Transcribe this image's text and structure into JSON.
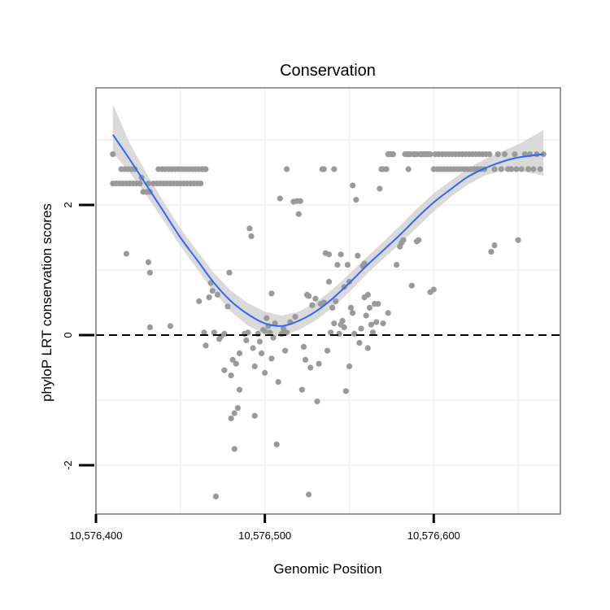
{
  "chart_data": {
    "type": "scatter",
    "title": "Conservation",
    "xlabel": "Genomic Position",
    "ylabel": "phyloP LRT conservation scores",
    "xlim": [
      10576400,
      10576675
    ],
    "ylim": [
      -2.75,
      3.8
    ],
    "x_ticks": [
      {
        "value": 10576400,
        "label": "10,576,400"
      },
      {
        "value": 10576500,
        "label": "10,576,500"
      },
      {
        "value": 10576600,
        "label": "10,576,600"
      }
    ],
    "y_ticks": [
      {
        "value": -2,
        "label": "-2"
      },
      {
        "value": 0,
        "label": "0"
      },
      {
        "value": 2,
        "label": "2"
      }
    ],
    "grid": true,
    "reference_line": {
      "y": 0,
      "style": "dashed"
    },
    "colors": {
      "points": "#9a9a9a",
      "smooth_line": "#3366ff",
      "confidence_band": "#d3d3d3",
      "grid": "#f2f2f2",
      "border": "#808080"
    },
    "points": [
      [
        10576410,
        2.78
      ],
      [
        10576410,
        2.33
      ],
      [
        10576412,
        2.33
      ],
      [
        10576414,
        2.33
      ],
      [
        10576415,
        2.55
      ],
      [
        10576416,
        2.33
      ],
      [
        10576417,
        2.55
      ],
      [
        10576418,
        2.33
      ],
      [
        10576419,
        2.55
      ],
      [
        10576420,
        2.33
      ],
      [
        10576421,
        2.55
      ],
      [
        10576422,
        2.33
      ],
      [
        10576423,
        2.55
      ],
      [
        10576424,
        2.33
      ],
      [
        10576426,
        2.33
      ],
      [
        10576427,
        2.42
      ],
      [
        10576428,
        2.2
      ],
      [
        10576430,
        2.2
      ],
      [
        10576431,
        2.33
      ],
      [
        10576432,
        2.2
      ],
      [
        10576434,
        2.33
      ],
      [
        10576436,
        2.33
      ],
      [
        10576437,
        2.55
      ],
      [
        10576438,
        2.33
      ],
      [
        10576439,
        2.55
      ],
      [
        10576440,
        2.33
      ],
      [
        10576441,
        2.55
      ],
      [
        10576442,
        2.33
      ],
      [
        10576443,
        2.55
      ],
      [
        10576444,
        2.33
      ],
      [
        10576445,
        2.55
      ],
      [
        10576446,
        2.33
      ],
      [
        10576447,
        2.55
      ],
      [
        10576448,
        2.33
      ],
      [
        10576449,
        2.55
      ],
      [
        10576450,
        2.33
      ],
      [
        10576451,
        2.55
      ],
      [
        10576452,
        2.33
      ],
      [
        10576453,
        2.55
      ],
      [
        10576454,
        2.33
      ],
      [
        10576455,
        2.55
      ],
      [
        10576456,
        2.33
      ],
      [
        10576457,
        2.55
      ],
      [
        10576458,
        2.33
      ],
      [
        10576459,
        2.55
      ],
      [
        10576460,
        2.33
      ],
      [
        10576461,
        2.55
      ],
      [
        10576462,
        2.33
      ],
      [
        10576463,
        2.55
      ],
      [
        10576464,
        2.55
      ],
      [
        10576465,
        2.55
      ],
      [
        10576418,
        1.25
      ],
      [
        10576431,
        1.12
      ],
      [
        10576432,
        0.96
      ],
      [
        10576432,
        0.12
      ],
      [
        10576444,
        0.14
      ],
      [
        10576461,
        0.52
      ],
      [
        10576464,
        0.04
      ],
      [
        10576465,
        -0.16
      ],
      [
        10576467,
        0.58
      ],
      [
        10576468,
        0.8
      ],
      [
        10576469,
        0.68
      ],
      [
        10576470,
        0.04
      ],
      [
        10576471,
        -2.48
      ],
      [
        10576472,
        0.62
      ],
      [
        10576473,
        -0.06
      ],
      [
        10576474,
        -0.02
      ],
      [
        10576476,
        0.02
      ],
      [
        10576476,
        -0.54
      ],
      [
        10576478,
        0.44
      ],
      [
        10576479,
        0.96
      ],
      [
        10576480,
        -0.62
      ],
      [
        10576480,
        -1.28
      ],
      [
        10576481,
        -0.38
      ],
      [
        10576482,
        -1.75
      ],
      [
        10576482,
        -1.2
      ],
      [
        10576483,
        -0.44
      ],
      [
        10576484,
        -1.12
      ],
      [
        10576485,
        -0.28
      ],
      [
        10576485,
        -0.84
      ],
      [
        10576488,
        0.02
      ],
      [
        10576489,
        -0.08
      ],
      [
        10576490,
        0.04
      ],
      [
        10576491,
        1.64
      ],
      [
        10576492,
        1.52
      ],
      [
        10576493,
        -0.2
      ],
      [
        10576494,
        -0.48
      ],
      [
        10576494,
        -1.24
      ],
      [
        10576496,
        0.02
      ],
      [
        10576497,
        -0.1
      ],
      [
        10576498,
        -0.28
      ],
      [
        10576499,
        0.08
      ],
      [
        10576500,
        0.06
      ],
      [
        10576500,
        -0.58
      ],
      [
        10576501,
        0.26
      ],
      [
        10576502,
        0.14
      ],
      [
        10576503,
        0.04
      ],
      [
        10576504,
        0.64
      ],
      [
        10576504,
        -0.36
      ],
      [
        10576505,
        -0.04
      ],
      [
        10576506,
        0.18
      ],
      [
        10576507,
        -1.68
      ],
      [
        10576508,
        -0.72
      ],
      [
        10576509,
        2.1
      ],
      [
        10576510,
        0.02
      ],
      [
        10576511,
        0.1
      ],
      [
        10576512,
        -0.24
      ],
      [
        10576513,
        2.55
      ],
      [
        10576513,
        0.04
      ],
      [
        10576515,
        0.2
      ],
      [
        10576517,
        2.05
      ],
      [
        10576518,
        0.28
      ],
      [
        10576519,
        2.06
      ],
      [
        10576520,
        1.86
      ],
      [
        10576521,
        2.06
      ],
      [
        10576522,
        -0.84
      ],
      [
        10576523,
        -0.18
      ],
      [
        10576524,
        -0.38
      ],
      [
        10576525,
        0.62
      ],
      [
        10576526,
        -2.45
      ],
      [
        10576526,
        0.6
      ],
      [
        10576527,
        -0.5
      ],
      [
        10576528,
        0.46
      ],
      [
        10576530,
        0.56
      ],
      [
        10576531,
        -1.02
      ],
      [
        10576532,
        -0.44
      ],
      [
        10576533,
        0.48
      ],
      [
        10576534,
        2.55
      ],
      [
        10576535,
        2.55
      ],
      [
        10576535,
        0.5
      ],
      [
        10576536,
        1.26
      ],
      [
        10576537,
        -0.24
      ],
      [
        10576538,
        1.24
      ],
      [
        10576538,
        0.82
      ],
      [
        10576539,
        0.04
      ],
      [
        10576540,
        0.42
      ],
      [
        10576541,
        0.18
      ],
      [
        10576541,
        2.55
      ],
      [
        10576542,
        0.52
      ],
      [
        10576543,
        1.08
      ],
      [
        10576544,
        0.02
      ],
      [
        10576545,
        1.24
      ],
      [
        10576545,
        0.16
      ],
      [
        10576546,
        0.22
      ],
      [
        10576547,
        0.12
      ],
      [
        10576547,
        0.74
      ],
      [
        10576548,
        -0.86
      ],
      [
        10576549,
        1.08
      ],
      [
        10576550,
        0.82
      ],
      [
        10576550,
        -0.48
      ],
      [
        10576551,
        0.42
      ],
      [
        10576552,
        2.3
      ],
      [
        10576552,
        0.34
      ],
      [
        10576553,
        0.02
      ],
      [
        10576554,
        2.08
      ],
      [
        10576555,
        1.22
      ],
      [
        10576556,
        -0.12
      ],
      [
        10576557,
        0.1
      ],
      [
        10576558,
        1.06
      ],
      [
        10576559,
        1.1
      ],
      [
        10576559,
        0.58
      ],
      [
        10576560,
        0.3
      ],
      [
        10576561,
        -0.2
      ],
      [
        10576561,
        0.62
      ],
      [
        10576562,
        0.42
      ],
      [
        10576563,
        0.16
      ],
      [
        10576564,
        0.04
      ],
      [
        10576565,
        0.48
      ],
      [
        10576566,
        0.2
      ],
      [
        10576567,
        0.48
      ],
      [
        10576568,
        2.25
      ],
      [
        10576569,
        2.55
      ],
      [
        10576570,
        2.55
      ],
      [
        10576570,
        0.18
      ],
      [
        10576572,
        2.55
      ],
      [
        10576573,
        2.78
      ],
      [
        10576573,
        0.34
      ],
      [
        10576574,
        2.78
      ],
      [
        10576575,
        2.78
      ],
      [
        10576576,
        2.78
      ],
      [
        10576578,
        1.08
      ],
      [
        10576580,
        1.36
      ],
      [
        10576581,
        1.42
      ],
      [
        10576582,
        1.46
      ],
      [
        10576583,
        2.78
      ],
      [
        10576584,
        2.78
      ],
      [
        10576585,
        2.55
      ],
      [
        10576585,
        2.78
      ],
      [
        10576586,
        2.78
      ],
      [
        10576587,
        0.76
      ],
      [
        10576588,
        2.78
      ],
      [
        10576589,
        2.78
      ],
      [
        10576590,
        2.78
      ],
      [
        10576590,
        1.44
      ],
      [
        10576591,
        1.46
      ],
      [
        10576592,
        2.78
      ],
      [
        10576593,
        2.78
      ],
      [
        10576594,
        2.78
      ],
      [
        10576595,
        2.78
      ],
      [
        10576596,
        2.78
      ],
      [
        10576597,
        2.78
      ],
      [
        10576598,
        0.66
      ],
      [
        10576598,
        2.78
      ],
      [
        10576600,
        2.55
      ],
      [
        10576600,
        0.7
      ],
      [
        10576601,
        2.78
      ],
      [
        10576602,
        2.55
      ],
      [
        10576603,
        2.78
      ],
      [
        10576604,
        2.55
      ],
      [
        10576605,
        2.78
      ],
      [
        10576606,
        2.55
      ],
      [
        10576607,
        2.78
      ],
      [
        10576608,
        2.55
      ],
      [
        10576609,
        2.78
      ],
      [
        10576610,
        2.55
      ],
      [
        10576611,
        2.78
      ],
      [
        10576612,
        2.55
      ],
      [
        10576613,
        2.78
      ],
      [
        10576614,
        2.55
      ],
      [
        10576615,
        2.78
      ],
      [
        10576616,
        2.55
      ],
      [
        10576617,
        2.78
      ],
      [
        10576618,
        2.55
      ],
      [
        10576619,
        2.78
      ],
      [
        10576620,
        2.55
      ],
      [
        10576621,
        2.78
      ],
      [
        10576622,
        2.55
      ],
      [
        10576623,
        2.78
      ],
      [
        10576624,
        2.55
      ],
      [
        10576625,
        2.78
      ],
      [
        10576626,
        2.55
      ],
      [
        10576627,
        2.78
      ],
      [
        10576628,
        2.55
      ],
      [
        10576629,
        2.78
      ],
      [
        10576630,
        2.55
      ],
      [
        10576631,
        2.78
      ],
      [
        10576633,
        2.78
      ],
      [
        10576634,
        1.28
      ],
      [
        10576636,
        1.38
      ],
      [
        10576636,
        2.55
      ],
      [
        10576638,
        2.78
      ],
      [
        10576640,
        2.55
      ],
      [
        10576642,
        2.78
      ],
      [
        10576644,
        2.55
      ],
      [
        10576646,
        2.55
      ],
      [
        10576648,
        2.78
      ],
      [
        10576649,
        2.55
      ],
      [
        10576650,
        1.46
      ],
      [
        10576652,
        2.55
      ],
      [
        10576654,
        2.78
      ],
      [
        10576656,
        2.55
      ],
      [
        10576657,
        2.78
      ],
      [
        10576659,
        2.55
      ],
      [
        10576661,
        2.78
      ],
      [
        10576663,
        2.55
      ],
      [
        10576665,
        2.78
      ]
    ],
    "smooth": {
      "x": [
        10576410,
        10576420,
        10576430,
        10576440,
        10576450,
        10576460,
        10576470,
        10576480,
        10576490,
        10576500,
        10576510,
        10576520,
        10576530,
        10576540,
        10576550,
        10576560,
        10576570,
        10576580,
        10576590,
        10576600,
        10576610,
        10576620,
        10576630,
        10576640,
        10576650,
        10576665
      ],
      "y": [
        3.08,
        2.7,
        2.3,
        1.9,
        1.5,
        1.15,
        0.8,
        0.52,
        0.32,
        0.18,
        0.14,
        0.22,
        0.36,
        0.56,
        0.8,
        1.06,
        1.3,
        1.54,
        1.8,
        2.04,
        2.24,
        2.43,
        2.56,
        2.66,
        2.73,
        2.78
      ],
      "lower": [
        2.8,
        2.5,
        2.14,
        1.76,
        1.37,
        1.01,
        0.66,
        0.36,
        0.14,
        0.02,
        -0.02,
        0.08,
        0.22,
        0.42,
        0.66,
        0.93,
        1.17,
        1.4,
        1.65,
        1.9,
        2.12,
        2.31,
        2.45,
        2.52,
        2.53,
        2.45
      ],
      "upper": [
        3.55,
        2.95,
        2.48,
        2.05,
        1.64,
        1.29,
        0.95,
        0.68,
        0.49,
        0.36,
        0.3,
        0.36,
        0.5,
        0.7,
        0.94,
        1.19,
        1.43,
        1.68,
        1.94,
        2.18,
        2.37,
        2.56,
        2.7,
        2.82,
        2.93,
        3.15
      ]
    }
  }
}
